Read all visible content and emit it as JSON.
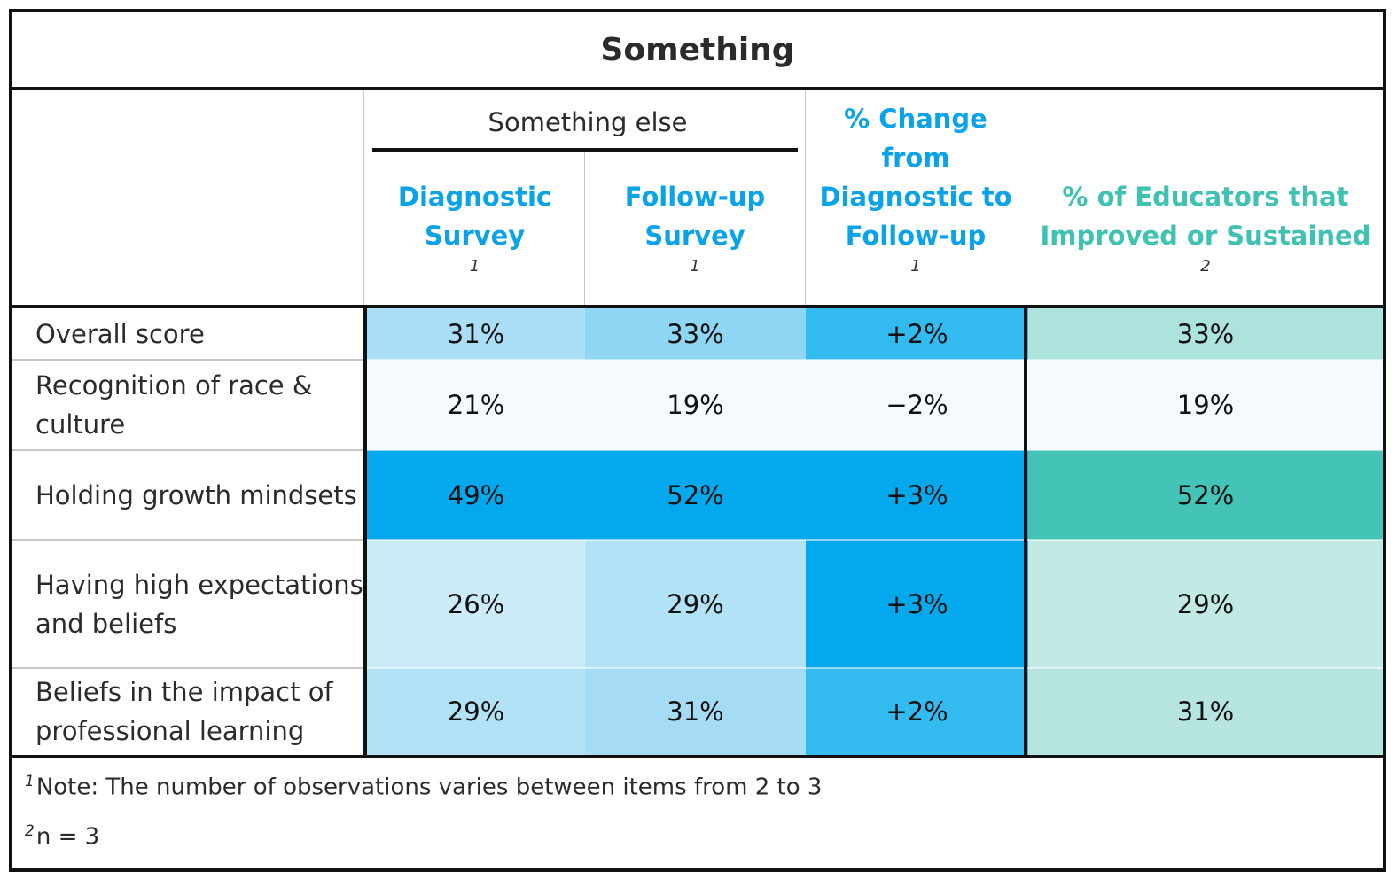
{
  "title": "Something",
  "group_header": "Something else",
  "columns": [
    {
      "line1": "Diagnostic",
      "line2": "Survey",
      "footnote": "1"
    },
    {
      "line1": "Follow-up",
      "line2": "Survey",
      "footnote": "1"
    },
    {
      "line1": "% Change",
      "line2": "from",
      "line3": "Diagnostic to",
      "line4": "Follow-up",
      "footnote": "1"
    },
    {
      "line1": "% of Educators that",
      "line2": "Improved or Sustained",
      "footnote": "2"
    }
  ],
  "colors": {
    "header_blue": "#0aa3e8",
    "header_teal": "#3fc2b2"
  },
  "chart_data": {
    "type": "table",
    "title": "Something",
    "columns": [
      "Diagnostic Survey",
      "Follow-up Survey",
      "% Change from Diagnostic to Follow-up",
      "% of Educators that Improved or Sustained"
    ],
    "rows": [
      {
        "label": "Overall score",
        "values": [
          "31%",
          "33%",
          "+2%",
          "33%"
        ],
        "fills": [
          "#a9def6",
          "#8fd6f4",
          "#33bbf0",
          "#ace3dd"
        ]
      },
      {
        "label": "Recognition of race & culture",
        "values": [
          "21%",
          "19%",
          "−2%",
          "19%"
        ],
        "fills": [
          "#f4fafd",
          "#f4fafd",
          "#f4fafd",
          "#f4fafd"
        ]
      },
      {
        "label": "Holding growth mindsets",
        "values": [
          "49%",
          "52%",
          "+3%",
          "52%"
        ],
        "fills": [
          "#03a9ec",
          "#03a9ec",
          "#03a9ec",
          "#43c4b6"
        ]
      },
      {
        "label": "Having high expectations and beliefs",
        "values": [
          "26%",
          "29%",
          "+3%",
          "29%"
        ],
        "fills": [
          "#cbebf8",
          "#b2e2f6",
          "#03a9ec",
          "#c1eae4"
        ]
      },
      {
        "label": "Beliefs in the impact of professional learning",
        "values": [
          "29%",
          "31%",
          "+2%",
          "31%"
        ],
        "fills": [
          "#b2e2f6",
          "#a5dbf4",
          "#33bbf0",
          "#b6e5df"
        ]
      }
    ]
  },
  "notes": [
    {
      "mark": "1",
      "text": "Note: The number of observations varies between items from 2 to 3"
    },
    {
      "mark": "2",
      "text": "n = 3"
    }
  ]
}
